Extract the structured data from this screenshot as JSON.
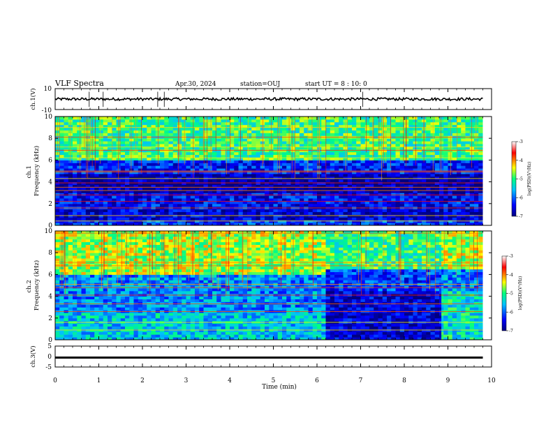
{
  "header": {
    "title": "VLF Spectra",
    "date": "Apr.30, 2024",
    "station": "station=OUJ",
    "start_ut": "start UT =  8 : 10: 0"
  },
  "chart_data": [
    {
      "type": "line",
      "panel": "ch1-waveform",
      "ylabel": "ch.1(V)",
      "ylim": [
        -10,
        10
      ],
      "ytick_labels": [
        "10",
        "-10"
      ],
      "x_range_min": [
        0,
        9.8
      ],
      "trace_level_V": 0,
      "spike_times_min": [
        0.78,
        1.1,
        2.35,
        2.5,
        7.05
      ]
    },
    {
      "type": "heatmap",
      "panel": "ch1-spectrogram",
      "ylabel": "ch.1\nFrequency (kHz)",
      "ylim": [
        0,
        10
      ],
      "ytick_labels": [
        "0",
        "2",
        "4",
        "6",
        "8",
        "10"
      ],
      "x_range_min": [
        0,
        9.8
      ],
      "colorbar": {
        "label": "log(PSD)(V²/Hz)",
        "range": [
          -7,
          -3
        ],
        "tick_labels": [
          "-3",
          "-4",
          "-5",
          "-6",
          "-7"
        ],
        "colormap": [
          "#000080",
          "#0000ff",
          "#00c0ff",
          "#00ff80",
          "#ffff00",
          "#ff0000",
          "#ffffff"
        ]
      },
      "bands": [
        {
          "f_khz": [
            0,
            0.4
          ],
          "level": -6.2
        },
        {
          "f_khz": [
            0.4,
            1.6
          ],
          "level": -6.6
        },
        {
          "f_khz": [
            1.6,
            3.0
          ],
          "level": -6.4
        },
        {
          "f_khz": [
            3.0,
            4.8
          ],
          "level": -6.8
        },
        {
          "f_khz": [
            4.8,
            6.0
          ],
          "level": -6.3
        },
        {
          "f_khz": [
            6.0,
            10.0
          ],
          "level": -5.0
        }
      ],
      "lines_khz": [
        0.4,
        0.9,
        1.6,
        2.2,
        2.8,
        3.2,
        3.5,
        3.9,
        4.3,
        4.9,
        5.0,
        6.2,
        6.9,
        7.2,
        8.1,
        9.0
      ]
    },
    {
      "type": "heatmap",
      "panel": "ch2-spectrogram",
      "ylabel": "ch.2\nFrequency (kHz)",
      "ylim": [
        0,
        10
      ],
      "ytick_labels": [
        "0",
        "2",
        "4",
        "6",
        "8",
        "10"
      ],
      "x_range_min": [
        0,
        9.8
      ],
      "colorbar": {
        "label": "log(PSD)(V²/Hz)",
        "range": [
          -7,
          -3
        ],
        "tick_labels": [
          "-3",
          "-4",
          "-5",
          "-6",
          "-7"
        ],
        "colormap": [
          "#000080",
          "#0000ff",
          "#00c0ff",
          "#00ff80",
          "#ffff00",
          "#ff0000",
          "#ffffff"
        ]
      },
      "segments": [
        {
          "t_min": [
            0,
            6.2
          ],
          "bands": [
            {
              "f_khz": [
                0,
                2.5
              ],
              "level": -5.5
            },
            {
              "f_khz": [
                2.5,
                6.0
              ],
              "level": -5.8
            },
            {
              "f_khz": [
                6.0,
                10.0
              ],
              "level": -4.6
            }
          ]
        },
        {
          "t_min": [
            6.2,
            8.85
          ],
          "bands": [
            {
              "f_khz": [
                0,
                4.5
              ],
              "level": -6.6
            },
            {
              "f_khz": [
                4.5,
                6.5
              ],
              "level": -6.2
            },
            {
              "f_khz": [
                6.5,
                10.0
              ],
              "level": -5.0
            }
          ]
        },
        {
          "t_min": [
            8.85,
            9.8
          ],
          "bands": [
            {
              "f_khz": [
                0,
                4.5
              ],
              "level": -5.3
            },
            {
              "f_khz": [
                4.5,
                6.5
              ],
              "level": -5.8
            },
            {
              "f_khz": [
                6.5,
                10.0
              ],
              "level": -4.6
            }
          ]
        }
      ],
      "lines_khz": [
        0.9,
        1.6,
        2.6,
        3.3,
        4.1,
        4.8,
        5.1,
        6.8,
        7.1,
        9.8
      ]
    },
    {
      "type": "line",
      "panel": "ch3-waveform",
      "ylabel": "ch.3(V)",
      "ylim": [
        -5,
        5
      ],
      "ytick_labels": [
        "5",
        "0",
        "-5"
      ],
      "x_range_min": [
        0,
        9.8
      ],
      "trace_level_V": -0.5
    }
  ],
  "xaxis": {
    "label": "Time (min)",
    "range": [
      0,
      10
    ],
    "tick_labels": [
      "0",
      "1",
      "2",
      "3",
      "4",
      "5",
      "6",
      "7",
      "8",
      "9",
      "10"
    ]
  }
}
